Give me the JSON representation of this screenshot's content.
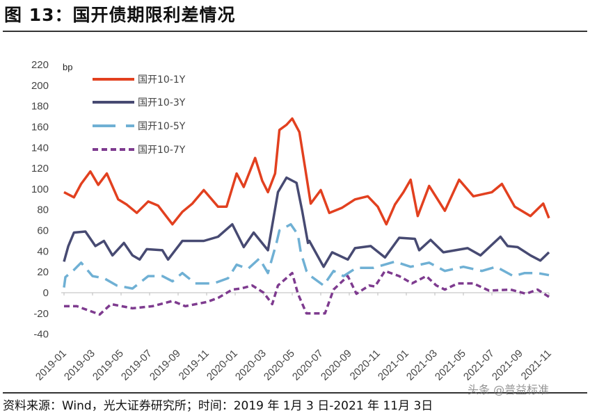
{
  "title": "图 13：国开债期限利差情况",
  "source": "资料来源：Wind，光大证券研究所；时间：2019 年 1月 3 日-2021 年 11月 3日",
  "watermark": "头条 @普益标准",
  "chart_data": {
    "type": "line",
    "title": "图 13：国开债期限利差情况",
    "ylabel": "bp",
    "xlabel": "",
    "ylim": [
      -40,
      220
    ],
    "yticks": [
      220,
      200,
      180,
      160,
      140,
      120,
      100,
      80,
      60,
      40,
      20,
      0,
      -20,
      -40
    ],
    "x_unit": "months since 2019-01",
    "xlim": [
      0,
      34
    ],
    "xtick_labels": [
      "2019-01",
      "2019-03",
      "2019-05",
      "2019-07",
      "2019-09",
      "2019-11",
      "2020-01",
      "2020-03",
      "2020-05",
      "2020-07",
      "2020-09",
      "2020-11",
      "2021-01",
      "2021-03",
      "2021-05",
      "2021-07",
      "2021-09",
      "2021-11"
    ],
    "legend_position": "top-left",
    "grid": false,
    "series": [
      {
        "name": "国开10-1Y",
        "color": "#e2401f",
        "dash": "solid",
        "points": [
          [
            0,
            97
          ],
          [
            0.7,
            92
          ],
          [
            1.2,
            105
          ],
          [
            1.85,
            117
          ],
          [
            2.4,
            104
          ],
          [
            3,
            115
          ],
          [
            3.8,
            90
          ],
          [
            4.4,
            85
          ],
          [
            5.1,
            77
          ],
          [
            5.9,
            88
          ],
          [
            6.6,
            84
          ],
          [
            7.6,
            66
          ],
          [
            8.3,
            78
          ],
          [
            9,
            86
          ],
          [
            9.8,
            99
          ],
          [
            10.8,
            83
          ],
          [
            11.4,
            83
          ],
          [
            12.1,
            115
          ],
          [
            12.6,
            102
          ],
          [
            13.4,
            130
          ],
          [
            13.9,
            108
          ],
          [
            14.3,
            97
          ],
          [
            14.8,
            115
          ],
          [
            15.1,
            157
          ],
          [
            15.6,
            162
          ],
          [
            16,
            168
          ],
          [
            16.5,
            155
          ],
          [
            16.9,
            121
          ],
          [
            17.3,
            86
          ],
          [
            18,
            99
          ],
          [
            18.6,
            77
          ],
          [
            19.5,
            82
          ],
          [
            20.4,
            90
          ],
          [
            21.3,
            93
          ],
          [
            22,
            83
          ],
          [
            22.6,
            66
          ],
          [
            23.2,
            85
          ],
          [
            23.8,
            97
          ],
          [
            24.3,
            109
          ],
          [
            24.8,
            74
          ],
          [
            25.6,
            103
          ],
          [
            26.7,
            79
          ],
          [
            27.7,
            109
          ],
          [
            28.7,
            93
          ],
          [
            30,
            97
          ],
          [
            30.7,
            105
          ],
          [
            31.6,
            83
          ],
          [
            32.7,
            74
          ],
          [
            33.6,
            86
          ],
          [
            34,
            72
          ]
        ]
      },
      {
        "name": "国开10-3Y",
        "color": "#474a72",
        "dash": "solid",
        "points": [
          [
            0,
            30
          ],
          [
            0.3,
            45
          ],
          [
            0.7,
            58
          ],
          [
            1.5,
            59
          ],
          [
            2.2,
            45
          ],
          [
            2.8,
            50
          ],
          [
            3.4,
            36
          ],
          [
            4.2,
            48
          ],
          [
            4.8,
            36
          ],
          [
            5.3,
            32
          ],
          [
            5.8,
            42
          ],
          [
            6.9,
            41
          ],
          [
            7.3,
            32
          ],
          [
            8.3,
            50
          ],
          [
            9.8,
            50
          ],
          [
            10.8,
            54
          ],
          [
            11.8,
            66
          ],
          [
            12.6,
            44
          ],
          [
            13.3,
            58
          ],
          [
            14.3,
            41
          ],
          [
            15,
            97
          ],
          [
            15.6,
            111
          ],
          [
            16.3,
            106
          ],
          [
            16.7,
            79
          ],
          [
            17.1,
            48
          ],
          [
            17.2,
            50
          ],
          [
            18.2,
            25
          ],
          [
            18.8,
            39
          ],
          [
            19.9,
            32
          ],
          [
            20.4,
            43
          ],
          [
            21.5,
            45
          ],
          [
            22.5,
            34
          ],
          [
            23.5,
            53
          ],
          [
            24.6,
            52
          ],
          [
            24.9,
            41
          ],
          [
            25.7,
            51
          ],
          [
            26.6,
            39
          ],
          [
            28.3,
            43
          ],
          [
            29.2,
            36
          ],
          [
            30.6,
            54
          ],
          [
            31.1,
            45
          ],
          [
            31.8,
            44
          ],
          [
            32.7,
            36
          ],
          [
            33.4,
            31
          ],
          [
            34,
            39
          ]
        ]
      },
      {
        "name": "国开10-5Y",
        "color": "#6fb0d4",
        "dash": "long",
        "points": [
          [
            0,
            5
          ],
          [
            0.1,
            15
          ],
          [
            0.7,
            22
          ],
          [
            1.2,
            29
          ],
          [
            2,
            16
          ],
          [
            2.8,
            14
          ],
          [
            3.7,
            7
          ],
          [
            4.8,
            4
          ],
          [
            5.9,
            16
          ],
          [
            6.9,
            16
          ],
          [
            7.6,
            11
          ],
          [
            8.3,
            19
          ],
          [
            9.2,
            9
          ],
          [
            10.5,
            9
          ],
          [
            11.5,
            14
          ],
          [
            12.1,
            27
          ],
          [
            12.9,
            23
          ],
          [
            13.7,
            33
          ],
          [
            14.3,
            19
          ],
          [
            14.9,
            48
          ],
          [
            15.1,
            60
          ],
          [
            15.9,
            66
          ],
          [
            16.4,
            56
          ],
          [
            16.6,
            39
          ],
          [
            17,
            21
          ],
          [
            17.3,
            16
          ],
          [
            18.2,
            7
          ],
          [
            18.9,
            21
          ],
          [
            19.6,
            16
          ],
          [
            20.5,
            24
          ],
          [
            21.7,
            24
          ],
          [
            22.7,
            28
          ],
          [
            23.2,
            30
          ],
          [
            24.3,
            25
          ],
          [
            25.6,
            29
          ],
          [
            26.7,
            21
          ],
          [
            28,
            25
          ],
          [
            29.3,
            21
          ],
          [
            30.3,
            25
          ],
          [
            31.5,
            16
          ],
          [
            32.3,
            19
          ],
          [
            33.2,
            19
          ],
          [
            34,
            17
          ]
        ]
      },
      {
        "name": "国开10-7Y",
        "color": "#7e3b8f",
        "dash": "short",
        "points": [
          [
            0,
            -13
          ],
          [
            0.9,
            -13
          ],
          [
            2.5,
            -21
          ],
          [
            3.3,
            -11
          ],
          [
            4.8,
            -15
          ],
          [
            6.2,
            -13
          ],
          [
            7.6,
            -8
          ],
          [
            8.5,
            -13
          ],
          [
            10,
            -9
          ],
          [
            10.8,
            -5
          ],
          [
            11.8,
            3
          ],
          [
            12.4,
            4
          ],
          [
            13.2,
            7
          ],
          [
            14,
            0
          ],
          [
            14.6,
            -11
          ],
          [
            15,
            7
          ],
          [
            16,
            19
          ],
          [
            16.4,
            -1
          ],
          [
            17,
            -20
          ],
          [
            17.6,
            -20
          ],
          [
            18.3,
            -20
          ],
          [
            18.9,
            3
          ],
          [
            19.9,
            16
          ],
          [
            20.5,
            -1
          ],
          [
            21.4,
            7
          ],
          [
            21.8,
            6
          ],
          [
            22.5,
            21
          ],
          [
            23.5,
            16
          ],
          [
            24.4,
            9
          ],
          [
            25.4,
            16
          ],
          [
            26.1,
            7
          ],
          [
            26.7,
            3
          ],
          [
            27.6,
            9
          ],
          [
            28.7,
            9
          ],
          [
            29.8,
            2
          ],
          [
            31.3,
            3
          ],
          [
            32.4,
            -1
          ],
          [
            33.2,
            3
          ],
          [
            34,
            -4
          ]
        ]
      }
    ]
  }
}
